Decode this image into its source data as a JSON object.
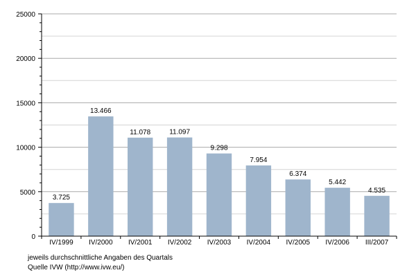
{
  "chart_data": {
    "type": "bar",
    "categories": [
      "IV/1999",
      "IV/2000",
      "IV/2001",
      "IV/2002",
      "IV/2003",
      "IV/2004",
      "IV/2005",
      "IV/2006",
      "III/2007"
    ],
    "values": [
      3725,
      13466,
      11078,
      11097,
      9298,
      7954,
      6374,
      5442,
      4535
    ],
    "data_labels": [
      "3.725",
      "13.466",
      "11.078",
      "11.097",
      "9.298",
      "7.954",
      "6.374",
      "5.442",
      "4.535"
    ],
    "y_ticks": [
      0,
      5000,
      10000,
      15000,
      20000,
      25000
    ],
    "y_tick_labels": [
      "0",
      "5000",
      "10000",
      "15000",
      "20000",
      "25000"
    ],
    "ylim": [
      0,
      25000
    ],
    "title": "",
    "xlabel": "",
    "ylabel": "",
    "grid": true,
    "bar_color": "#9fb5cc",
    "grid_color": "#aaaaaa"
  },
  "notes": {
    "line1": "jeweils durchschnittliche Angaben des Quartals",
    "line2": "Quelle IVW (http://www.ivw.eu/)"
  }
}
